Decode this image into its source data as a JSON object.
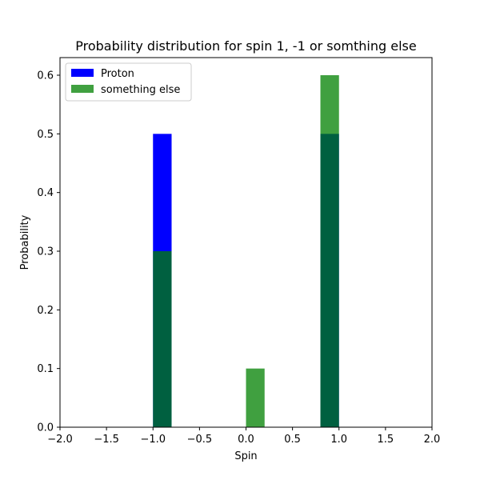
{
  "chart_data": {
    "type": "bar",
    "title": "Probability distribution for spin 1, -1 or somthing else",
    "xlabel": "Spin",
    "ylabel": "Probability",
    "xlim": [
      -2.0,
      2.0
    ],
    "ylim": [
      0.0,
      0.63
    ],
    "xticks": [
      -2.0,
      -1.5,
      -1.0,
      -0.5,
      0.0,
      0.5,
      1.0,
      1.5,
      2.0
    ],
    "xtick_labels": [
      "−2.0",
      "−1.5",
      "−1.0",
      "−0.5",
      "0.0",
      "0.5",
      "1.0",
      "1.5",
      "2.0"
    ],
    "yticks": [
      0.0,
      0.1,
      0.2,
      0.3,
      0.4,
      0.5,
      0.6
    ],
    "ytick_labels": [
      "0.0",
      "0.1",
      "0.2",
      "0.3",
      "0.4",
      "0.5",
      "0.6"
    ],
    "bar_width": 0.2,
    "legend_position": "upper-left",
    "grid": false,
    "series": [
      {
        "name": "Proton",
        "color": "#0000ff",
        "alpha": 1.0,
        "bars": [
          {
            "x_left": -1.0,
            "value": 0.5
          },
          {
            "x_left": 0.8,
            "value": 0.5
          }
        ]
      },
      {
        "name": "something else",
        "color": "#008000",
        "alpha": 0.75,
        "bars": [
          {
            "x_left": -1.0,
            "value": 0.3
          },
          {
            "x_left": 0.0,
            "value": 0.1
          },
          {
            "x_left": 0.8,
            "value": 0.6
          }
        ]
      }
    ]
  }
}
